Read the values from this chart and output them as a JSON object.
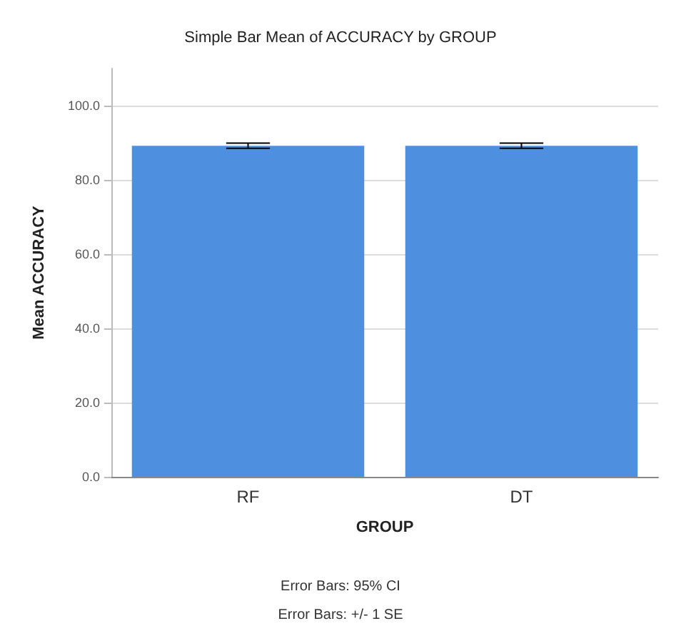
{
  "chart_data": {
    "type": "bar",
    "title": "Simple Bar Mean of ACCURACY by GROUP",
    "xlabel": "GROUP",
    "ylabel": "Mean ACCURACY",
    "categories": [
      "RF",
      "DT"
    ],
    "series": [
      {
        "color": "#4f8fe0",
        "values": [
          89.2,
          89.2
        ],
        "errors": [
          0.7,
          0.7
        ]
      }
    ],
    "ylim": [
      0,
      110
    ],
    "yticks": [
      {
        "value": 0,
        "label": "0.0"
      },
      {
        "value": 20,
        "label": "20.0"
      },
      {
        "value": 40,
        "label": "40.0"
      },
      {
        "value": 60,
        "label": "60.0"
      },
      {
        "value": 80,
        "label": "80.0"
      },
      {
        "value": 100,
        "label": "100.0"
      }
    ],
    "grid": "y",
    "annotations": [
      "Error Bars: 95% CI",
      "Error Bars: +/- 1 SE"
    ]
  }
}
